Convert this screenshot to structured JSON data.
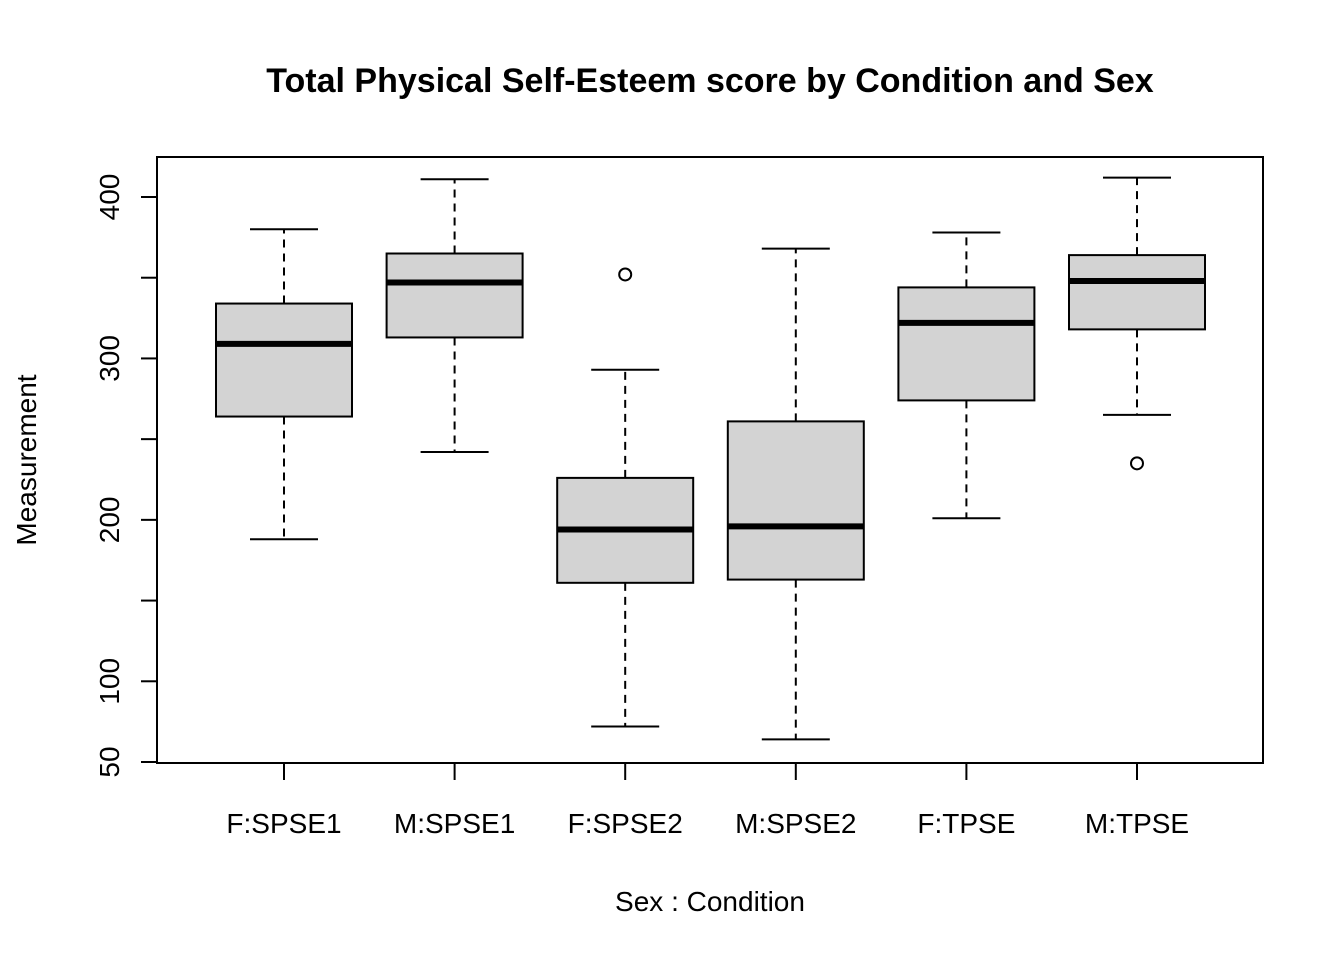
{
  "chart_data": {
    "type": "boxplot",
    "title": "Total Physical Self-Esteem score by Condition and Sex",
    "xlabel": "Sex : Condition",
    "ylabel": "Measurement",
    "ylim": [
      50,
      425
    ],
    "yticks": [
      50,
      100,
      200,
      300,
      400
    ],
    "yticks_minor": [
      150,
      250,
      350
    ],
    "grid": false,
    "box_fill": "#d3d3d3",
    "categories": [
      "F:SPSE1",
      "M:SPSE1",
      "F:SPSE2",
      "M:SPSE2",
      "F:TPSE",
      "M:TPSE"
    ],
    "boxes": [
      {
        "label": "F:SPSE1",
        "whisker_low": 188,
        "q1": 264,
        "median": 309,
        "q3": 334,
        "whisker_high": 380,
        "outliers": []
      },
      {
        "label": "M:SPSE1",
        "whisker_low": 242,
        "q1": 313,
        "median": 347,
        "q3": 365,
        "whisker_high": 411,
        "outliers": []
      },
      {
        "label": "F:SPSE2",
        "whisker_low": 72,
        "q1": 161,
        "median": 194,
        "q3": 226,
        "whisker_high": 293,
        "outliers": [
          352
        ]
      },
      {
        "label": "M:SPSE2",
        "whisker_low": 64,
        "q1": 163,
        "median": 196,
        "q3": 261,
        "whisker_high": 368,
        "outliers": []
      },
      {
        "label": "F:TPSE",
        "whisker_low": 201,
        "q1": 274,
        "median": 322,
        "q3": 344,
        "whisker_high": 378,
        "outliers": []
      },
      {
        "label": "M:TPSE",
        "whisker_low": 265,
        "q1": 318,
        "median": 348,
        "q3": 364,
        "whisker_high": 412,
        "outliers": [
          235
        ]
      }
    ]
  }
}
